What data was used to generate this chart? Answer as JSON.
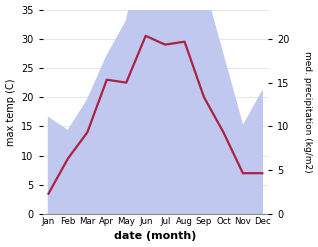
{
  "months": [
    "Jan",
    "Feb",
    "Mar",
    "Apr",
    "May",
    "Jun",
    "Jul",
    "Aug",
    "Sep",
    "Oct",
    "Nov",
    "Dec"
  ],
  "temp": [
    3.5,
    9.5,
    14.0,
    23.0,
    22.5,
    30.5,
    29.0,
    29.5,
    20.0,
    14.0,
    7.0,
    7.0
  ],
  "precip": [
    11.0,
    9.5,
    13.0,
    18.0,
    22.0,
    31.0,
    33.0,
    33.5,
    26.0,
    18.0,
    10.0,
    14.0
  ],
  "temp_color": "#aa2244",
  "precip_fill_color": "#c0c8f0",
  "precip_line_color": "#9090c0",
  "ylim_left": [
    0,
    35
  ],
  "ylim_right": [
    0,
    23.33
  ],
  "yticks_left": [
    0,
    5,
    10,
    15,
    20,
    25,
    30,
    35
  ],
  "yticks_right": [
    0,
    5,
    10,
    15,
    20
  ],
  "ylabel_left": "max temp (C)",
  "ylabel_right": "med. precipitation (kg/m2)",
  "xlabel": "date (month)",
  "bg_color": "#ffffff"
}
